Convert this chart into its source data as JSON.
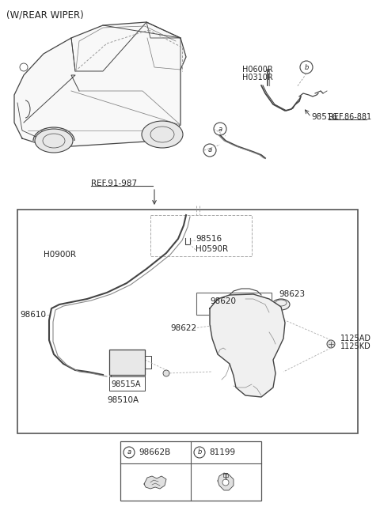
{
  "title": "(W/REAR WIPER)",
  "bg_color": "#ffffff",
  "line_color": "#444444",
  "text_color": "#222222",
  "legend_a_code": "98662B",
  "legend_b_code": "81199",
  "ref_label": "REF.91-987",
  "ref2_label": "REF.86-881"
}
